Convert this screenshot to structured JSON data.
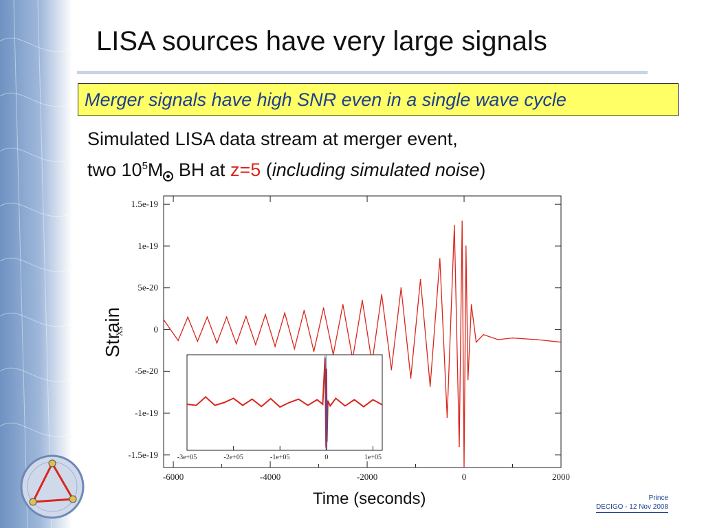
{
  "slide": {
    "title": "LISA sources have very large signals",
    "subtitle": "Merger signals have high SNR even in a single wave cycle",
    "description": {
      "line1": "Simulated LISA data stream at  merger event,",
      "line2_a": "two 10",
      "line2_exp": "5",
      "line2_b": "M",
      "line2_c": " BH at ",
      "line2_z": "z=5",
      "line2_d": " (",
      "line2_italic": "including simulated noise",
      "line2_e": ")"
    },
    "footer": {
      "author": "Prince",
      "event": "DECIGO - 12 Nov 2008"
    },
    "icons": [
      "lisa-logo-icon",
      "solar-mass-symbol-icon"
    ],
    "accent_colors": {
      "signal": "#d9261c",
      "highlight_box": "#ffff66",
      "subtitle_text": "#1f3f8f"
    }
  },
  "chart_data": [
    {
      "type": "line",
      "title": "",
      "xlabel": "Time (seconds)",
      "ylabel": "Strain",
      "ylabel_inner": "Xs",
      "xlim": [
        -6200,
        2000
      ],
      "ylim": [
        -1.65e-19,
        1.6e-19
      ],
      "xticks": [
        -6000,
        -4000,
        -2000,
        0,
        2000
      ],
      "xtick_labels": [
        "-6000",
        "-4000",
        "-2000",
        "0",
        "2000"
      ],
      "yticks": [
        1.5e-19,
        1e-19,
        5e-20,
        0,
        -5e-20,
        -1e-19,
        -1.5e-19
      ],
      "ytick_labels": [
        "1.5e-19",
        "1e-19",
        "5e-20",
        "0",
        "-5e-20",
        "-1e-19",
        "-1.5e-19"
      ],
      "grid": false,
      "legend": "none",
      "series": [
        {
          "color": "#d9261c",
          "x": [
            -6200,
            -5900,
            -5700,
            -5500,
            -5300,
            -5100,
            -4900,
            -4700,
            -4500,
            -4300,
            -4100,
            -3900,
            -3700,
            -3500,
            -3300,
            -3100,
            -2900,
            -2700,
            -2500,
            -2300,
            -2100,
            -1900,
            -1700,
            -1500,
            -1300,
            -1100,
            -900,
            -700,
            -500,
            -350,
            -200,
            -100,
            -40,
            0,
            40,
            80,
            150,
            250,
            400,
            700,
            1000,
            1500,
            2000
          ],
          "y": [
            1.2e-20,
            -1.3e-20,
            1.5e-20,
            -1.4e-20,
            1.5e-20,
            -1.6e-20,
            1.5e-20,
            -1.7e-20,
            1.6e-20,
            -1.8e-20,
            1.8e-20,
            -2e-20,
            2e-20,
            -2.3e-20,
            2.3e-20,
            -2.6e-20,
            2.6e-20,
            -3e-20,
            3e-20,
            -3.5e-20,
            3.5e-20,
            -4e-20,
            4.2e-20,
            -4.8e-20,
            5e-20,
            -5.8e-20,
            6e-20,
            -6.8e-20,
            8.5e-20,
            -1.05e-19,
            1.25e-19,
            -1.4e-19,
            1.3e-19,
            -1.65e-19,
            1e-19,
            -6e-20,
            3e-20,
            -1.5e-20,
            -6e-21,
            -1.2e-20,
            -1e-20,
            -1.2e-20,
            -1.5e-20
          ]
        }
      ]
    },
    {
      "type": "line",
      "title": "",
      "xlim": [
        -300000,
        120000
      ],
      "ylim": [
        -1.7e-19,
        1.7e-19
      ],
      "xticks": [
        -300000,
        -200000,
        -100000,
        0,
        100000
      ],
      "xtick_labels": [
        "-3e+05",
        "-2e+05",
        "-1e+05",
        "0",
        "1e+05"
      ],
      "grid": false,
      "legend": "none",
      "series": [
        {
          "color": "#d9261c",
          "x": [
            -300000,
            -280000,
            -260000,
            -240000,
            -220000,
            -200000,
            -180000,
            -160000,
            -140000,
            -120000,
            -100000,
            -80000,
            -60000,
            -40000,
            -20000,
            -8000,
            -3000,
            -1000,
            0,
            1000,
            3000,
            8000,
            20000,
            40000,
            60000,
            80000,
            100000,
            120000
          ],
          "y": [
            -6e-21,
            -1e-20,
            2e-20,
            -1e-20,
            0,
            1.5e-20,
            -1e-20,
            1.2e-20,
            -1.4e-20,
            1.4e-20,
            -1.6e-20,
            0,
            1.2e-20,
            -1e-20,
            1e-20,
            -6e-21,
            1.6e-19,
            -1.6e-19,
            1.2e-19,
            -1.4e-19,
            6e-21,
            -1.2e-20,
            1.5e-20,
            -1.2e-20,
            1e-20,
            -1.5e-20,
            1e-20,
            -8e-21
          ]
        },
        {
          "color": "#3355aa",
          "x": [
            -3000,
            -1000,
            0,
            1000,
            3000
          ],
          "y": [
            1.7e-19,
            -1.7e-19,
            1.7e-19,
            -1.7e-19,
            1e-20
          ]
        }
      ]
    }
  ]
}
